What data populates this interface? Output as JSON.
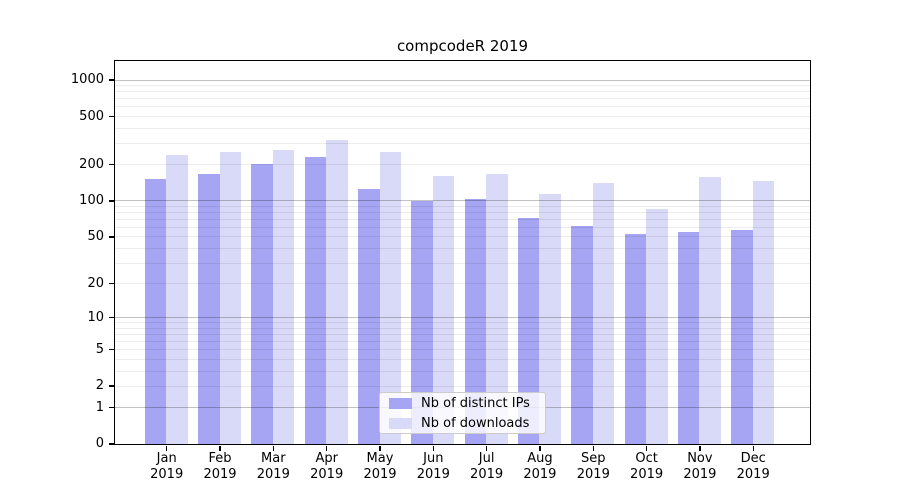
{
  "title": "compcodeR 2019",
  "chart_data": {
    "type": "bar",
    "title": "compcodeR 2019",
    "categories": [
      "Jan",
      "Feb",
      "Mar",
      "Apr",
      "May",
      "Jun",
      "Jul",
      "Aug",
      "Sep",
      "Oct",
      "Nov",
      "Dec"
    ],
    "category_year": "2019",
    "series": [
      {
        "name": "Nb of distinct IPs",
        "color": "#a5a5f3",
        "values": [
          150,
          165,
          200,
          230,
          125,
          98,
          103,
          72,
          61,
          52,
          54,
          57
        ]
      },
      {
        "name": "Nb of downloads",
        "color": "#d9d9f8",
        "values": [
          240,
          250,
          262,
          318,
          250,
          159,
          167,
          113,
          140,
          85,
          156,
          146
        ]
      }
    ],
    "y_axis": {
      "scale": "log(v+1)",
      "tick_labels": [
        1000,
        500,
        200,
        100,
        50,
        20,
        10,
        5,
        2,
        1,
        0
      ],
      "range": [
        0,
        1000
      ]
    },
    "x_axis": {
      "tick_label_lines": 2
    },
    "grid": {
      "shown": true,
      "which": "both",
      "major_at": [
        1,
        10,
        100,
        1000
      ]
    },
    "legend": {
      "position": "bottom-center"
    }
  }
}
